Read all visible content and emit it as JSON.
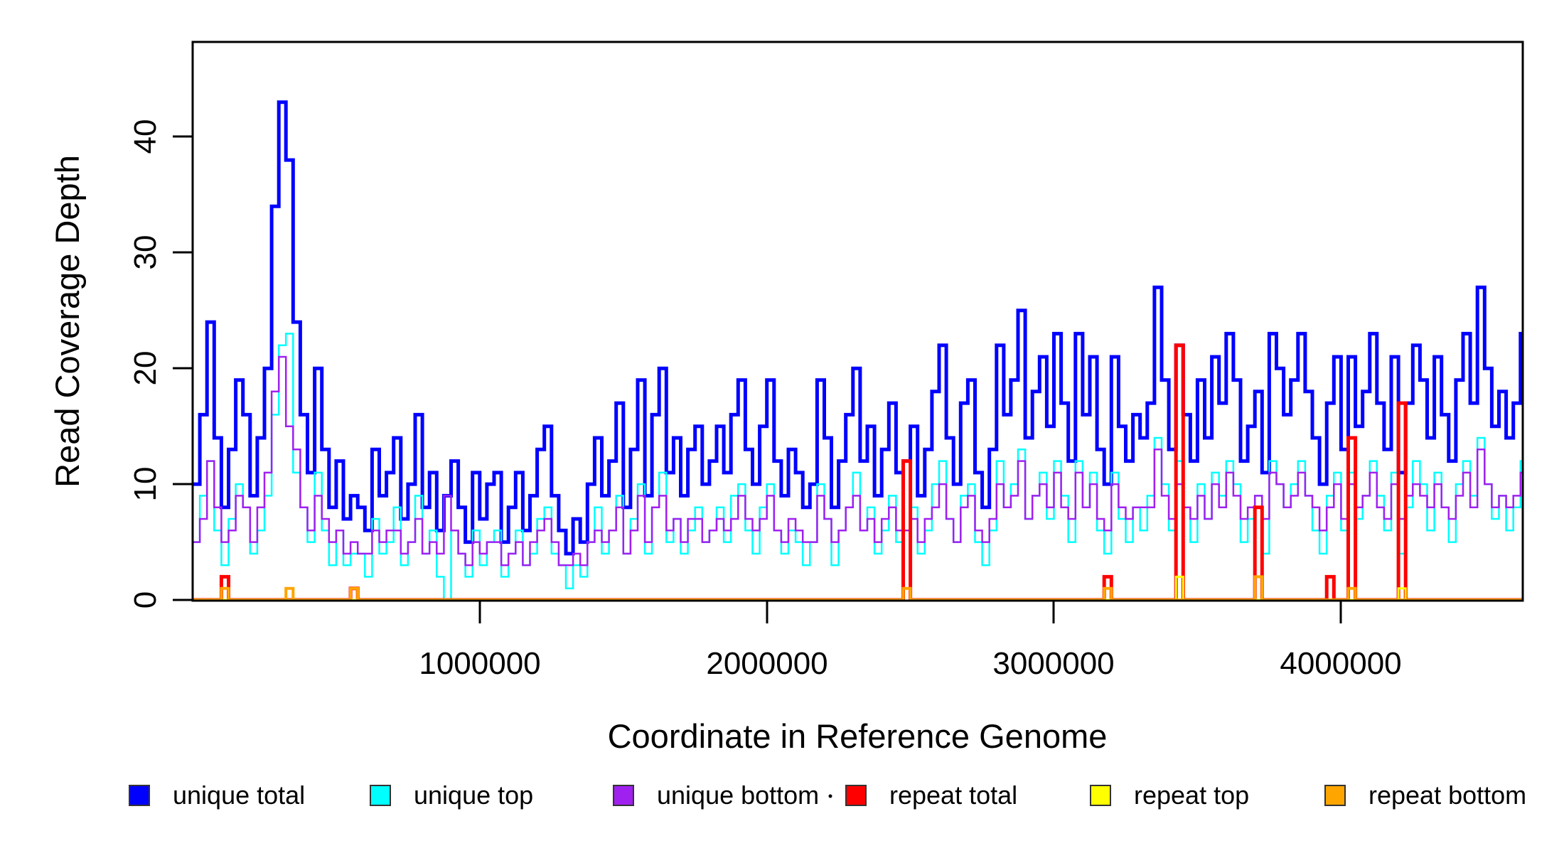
{
  "figure": {
    "y_axis": {
      "title": "Read Coverage Depth",
      "ticks": [
        "0",
        "10",
        "20",
        "30",
        "40"
      ],
      "tick_values": [
        0,
        10,
        20,
        30,
        40
      ],
      "range": [
        0,
        48.2
      ]
    },
    "x_axis": {
      "title": "Coordinate in Reference Genome",
      "ticks": [
        "1000000",
        "2000000",
        "3000000",
        "4000000"
      ],
      "tick_values": [
        1000000,
        2000000,
        3000000,
        4000000
      ],
      "range": [
        0,
        4633000
      ]
    },
    "legend": [
      {
        "label": "unique total",
        "color": "#0000FF"
      },
      {
        "label": "unique top",
        "color": "#00FFFF"
      },
      {
        "label": "unique bottom",
        "color": "#A020F0"
      },
      {
        "label": "repeat total",
        "color": "#FF0000"
      },
      {
        "label": "repeat top",
        "color": "#FFFF00"
      },
      {
        "label": "repeat bottom",
        "color": "#FFA500"
      }
    ]
  },
  "chart_data": {
    "type": "line",
    "style": "step",
    "title": "",
    "xlabel": "Coordinate in Reference Genome",
    "ylabel": "Read Coverage Depth",
    "xlim": [
      0,
      4633000
    ],
    "ylim": [
      0,
      48.2
    ],
    "xticks": [
      1000000,
      2000000,
      3000000,
      4000000
    ],
    "yticks": [
      0,
      10,
      20,
      30,
      40
    ],
    "grid": false,
    "legend_position": "bottom",
    "bin_size": 25000,
    "n_bins": 186,
    "series": [
      {
        "name": "unique total",
        "color": "#0000FF",
        "width": 5,
        "values": [
          10,
          16,
          24,
          14,
          8,
          13,
          19,
          16,
          9,
          14,
          20,
          34,
          43,
          38,
          24,
          16,
          11,
          20,
          13,
          8,
          12,
          7,
          9,
          8,
          6,
          13,
          9,
          11,
          14,
          7,
          10,
          16,
          8,
          11,
          6,
          9,
          12,
          8,
          5,
          11,
          7,
          10,
          11,
          5,
          8,
          11,
          6,
          9,
          13,
          15,
          9,
          6,
          4,
          7,
          5,
          10,
          14,
          9,
          12,
          17,
          8,
          13,
          19,
          9,
          16,
          20,
          11,
          14,
          9,
          13,
          15,
          10,
          12,
          15,
          11,
          16,
          19,
          13,
          10,
          15,
          19,
          12,
          9,
          13,
          11,
          8,
          10,
          19,
          14,
          8,
          12,
          16,
          20,
          12,
          15,
          9,
          13,
          17,
          11,
          12,
          15,
          9,
          13,
          18,
          22,
          14,
          10,
          17,
          19,
          11,
          8,
          13,
          22,
          16,
          19,
          25,
          14,
          18,
          21,
          15,
          23,
          17,
          12,
          23,
          16,
          21,
          13,
          10,
          21,
          15,
          12,
          16,
          14,
          17,
          27,
          19,
          13,
          22,
          16,
          12,
          19,
          14,
          21,
          17,
          23,
          19,
          12,
          15,
          18,
          11,
          23,
          20,
          16,
          19,
          23,
          18,
          14,
          10,
          17,
          21,
          13,
          21,
          15,
          18,
          23,
          17,
          13,
          21,
          11,
          17,
          22,
          19,
          14,
          21,
          16,
          12,
          19,
          23,
          17,
          27,
          20,
          15,
          18,
          14,
          17,
          23
        ]
      },
      {
        "name": "unique top",
        "color": "#00FFFF",
        "width": 2.5,
        "values": [
          5,
          9,
          12,
          6,
          3,
          7,
          10,
          8,
          4,
          6,
          9,
          16,
          22,
          23,
          11,
          8,
          5,
          11,
          6,
          3,
          6,
          3,
          4,
          4,
          2,
          7,
          4,
          5,
          8,
          3,
          5,
          9,
          4,
          6,
          2,
          0,
          6,
          4,
          2,
          6,
          3,
          5,
          6,
          2,
          4,
          6,
          3,
          4,
          7,
          8,
          4,
          3,
          1,
          3,
          2,
          5,
          8,
          4,
          6,
          9,
          4,
          7,
          10,
          4,
          8,
          11,
          5,
          7,
          4,
          6,
          8,
          5,
          6,
          8,
          5,
          9,
          10,
          6,
          4,
          8,
          10,
          6,
          4,
          6,
          5,
          3,
          5,
          10,
          7,
          3,
          6,
          8,
          11,
          6,
          8,
          4,
          6,
          9,
          5,
          6,
          8,
          4,
          6,
          10,
          12,
          7,
          5,
          9,
          10,
          5,
          3,
          6,
          12,
          8,
          10,
          13,
          7,
          9,
          11,
          7,
          12,
          9,
          5,
          12,
          8,
          11,
          6,
          4,
          11,
          7,
          5,
          8,
          6,
          9,
          14,
          10,
          6,
          12,
          8,
          5,
          10,
          7,
          11,
          9,
          12,
          10,
          5,
          7,
          9,
          4,
          12,
          10,
          8,
          10,
          12,
          9,
          6,
          4,
          9,
          11,
          6,
          11,
          7,
          9,
          12,
          9,
          6,
          11,
          4,
          8,
          12,
          10,
          6,
          11,
          8,
          5,
          10,
          12,
          9,
          14,
          10,
          7,
          9,
          6,
          8,
          12
        ]
      },
      {
        "name": "unique bottom",
        "color": "#A020F0",
        "width": 2.5,
        "values": [
          5,
          7,
          12,
          8,
          5,
          6,
          9,
          8,
          5,
          8,
          11,
          18,
          21,
          15,
          13,
          8,
          6,
          9,
          7,
          5,
          6,
          4,
          5,
          4,
          4,
          6,
          5,
          6,
          6,
          4,
          5,
          7,
          4,
          5,
          4,
          9,
          6,
          4,
          3,
          5,
          4,
          5,
          5,
          3,
          4,
          5,
          3,
          5,
          6,
          7,
          5,
          3,
          3,
          4,
          3,
          5,
          6,
          5,
          6,
          8,
          4,
          6,
          9,
          5,
          8,
          9,
          6,
          7,
          5,
          7,
          7,
          5,
          6,
          7,
          6,
          7,
          9,
          7,
          6,
          7,
          9,
          6,
          5,
          7,
          6,
          5,
          5,
          9,
          7,
          5,
          6,
          8,
          9,
          6,
          7,
          5,
          7,
          8,
          6,
          6,
          7,
          5,
          7,
          8,
          10,
          7,
          5,
          8,
          9,
          6,
          5,
          7,
          10,
          8,
          9,
          12,
          7,
          9,
          10,
          8,
          11,
          8,
          7,
          11,
          8,
          10,
          7,
          6,
          10,
          8,
          7,
          8,
          8,
          8,
          13,
          9,
          7,
          10,
          8,
          7,
          9,
          7,
          10,
          8,
          11,
          9,
          7,
          8,
          9,
          7,
          11,
          10,
          8,
          9,
          11,
          9,
          8,
          6,
          8,
          10,
          7,
          10,
          8,
          9,
          11,
          8,
          7,
          10,
          7,
          9,
          10,
          9,
          8,
          10,
          8,
          7,
          9,
          11,
          8,
          13,
          10,
          8,
          9,
          8,
          9,
          11
        ]
      },
      {
        "name": "repeat total",
        "color": "#FF0000",
        "width": 5,
        "baseline": 0,
        "spikes": [
          [
            4,
            2
          ],
          [
            22,
            1
          ],
          [
            99,
            12
          ],
          [
            127,
            2
          ],
          [
            137,
            22
          ],
          [
            148,
            8
          ],
          [
            158,
            2
          ],
          [
            161,
            14
          ],
          [
            168,
            17
          ]
        ]
      },
      {
        "name": "repeat top",
        "color": "#FFFF00",
        "width": 3,
        "baseline": 0,
        "spikes": [
          [
            99,
            1
          ],
          [
            137,
            2
          ],
          [
            168,
            1
          ]
        ]
      },
      {
        "name": "repeat bottom",
        "color": "#FFA500",
        "width": 4,
        "baseline": 0,
        "spikes": [
          [
            4,
            1
          ],
          [
            13,
            1
          ],
          [
            22,
            1
          ],
          [
            99,
            1
          ],
          [
            127,
            1
          ],
          [
            148,
            2
          ],
          [
            161,
            1
          ]
        ]
      }
    ]
  }
}
